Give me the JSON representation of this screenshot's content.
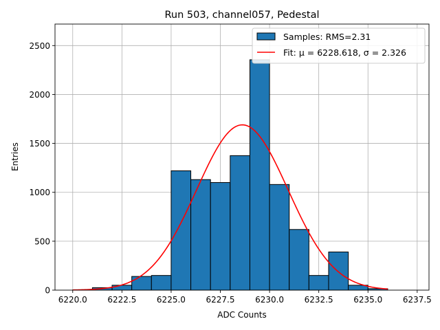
{
  "chart_data": {
    "type": "bar",
    "title": "Run 503, channel057, Pedestal",
    "xlabel": "ADC Counts",
    "ylabel": "Entries",
    "xlim": [
      6219.1,
      6238.1
    ],
    "ylim": [
      0,
      2720
    ],
    "grid": true,
    "legend_placement": "top-right",
    "bar_color": "#1f77b4",
    "fit_color": "#ff0000",
    "x_ticks": [
      6220.0,
      6222.5,
      6225.0,
      6227.5,
      6230.0,
      6232.5,
      6235.0,
      6237.5
    ],
    "x_tick_labels": [
      "6220.0",
      "6222.5",
      "6225.0",
      "6227.5",
      "6230.0",
      "6232.5",
      "6235.0",
      "6237.5"
    ],
    "y_ticks": [
      0,
      500,
      1000,
      1500,
      2000,
      2500
    ],
    "y_tick_labels": [
      "0",
      "500",
      "1000",
      "1500",
      "2000",
      "2500"
    ],
    "bins": [
      {
        "left": 6220,
        "right": 6221,
        "value": 2
      },
      {
        "left": 6221,
        "right": 6222,
        "value": 25
      },
      {
        "left": 6222,
        "right": 6223,
        "value": 50
      },
      {
        "left": 6223,
        "right": 6224,
        "value": 140
      },
      {
        "left": 6224,
        "right": 6225,
        "value": 150
      },
      {
        "left": 6225,
        "right": 6226,
        "value": 1220
      },
      {
        "left": 6226,
        "right": 6227,
        "value": 1130
      },
      {
        "left": 6227,
        "right": 6228,
        "value": 1100
      },
      {
        "left": 6228,
        "right": 6229,
        "value": 1375
      },
      {
        "left": 6229,
        "right": 6230,
        "value": 2355
      },
      {
        "left": 6230,
        "right": 6231,
        "value": 1080
      },
      {
        "left": 6231,
        "right": 6232,
        "value": 620
      },
      {
        "left": 6232,
        "right": 6233,
        "value": 150
      },
      {
        "left": 6233,
        "right": 6234,
        "value": 390
      },
      {
        "left": 6234,
        "right": 6235,
        "value": 50
      },
      {
        "left": 6235,
        "right": 6236,
        "value": 15
      }
    ],
    "fit": {
      "mu": 6228.618,
      "sigma": 2.326,
      "x_range": [
        6220,
        6236
      ]
    },
    "legend": [
      {
        "kind": "bar",
        "label": "Samples: RMS=2.31"
      },
      {
        "kind": "line",
        "label": "Fit: μ = 6228.618, σ = 2.326"
      }
    ]
  }
}
